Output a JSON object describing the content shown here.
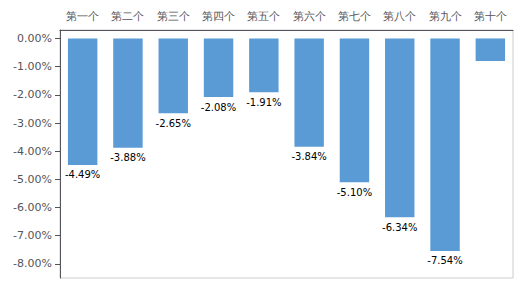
{
  "chart_data": {
    "type": "bar",
    "categories": [
      "第一个",
      "第二个",
      "第三个",
      "第四个",
      "第五个",
      "第六个",
      "第七个",
      "第八个",
      "第九个",
      "第十个"
    ],
    "values": [
      -4.49,
      -3.88,
      -2.65,
      -2.08,
      -1.91,
      -3.84,
      -5.1,
      -6.34,
      -7.54,
      -0.8
    ],
    "value_labels": [
      "-4.49%",
      "-3.88%",
      "-2.65%",
      "-2.08%",
      "-1.91%",
      "-3.84%",
      "-5.10%",
      "-6.34%",
      "-7.54%",
      null
    ],
    "data_labels": true,
    "color": "#5B9BD5",
    "ylim": [
      -8.5,
      0.3
    ],
    "yticks": [
      {
        "value": 0.0,
        "label": "0.00%"
      },
      {
        "value": -1.0,
        "label": "-1.00%"
      },
      {
        "value": -2.0,
        "label": "-2.00%"
      },
      {
        "value": -3.0,
        "label": "-3.00%"
      },
      {
        "value": -4.0,
        "label": "-4.00%"
      },
      {
        "value": -5.0,
        "label": "-5.00%"
      },
      {
        "value": -6.0,
        "label": "-6.00%"
      },
      {
        "value": -7.0,
        "label": "-7.00%"
      },
      {
        "value": -8.0,
        "label": "-8.00%"
      }
    ],
    "grid": false
  }
}
